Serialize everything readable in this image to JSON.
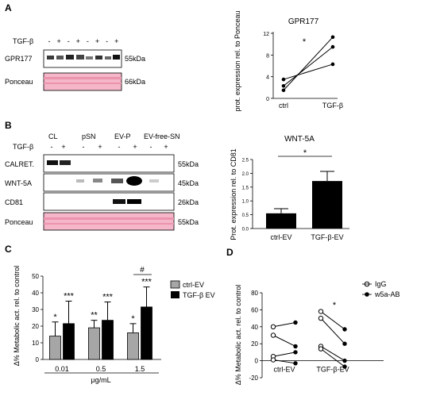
{
  "panels": {
    "A": "A",
    "B": "B",
    "C": "C",
    "D": "D"
  },
  "blotA": {
    "treatment_label": "TGF-β",
    "lane_signs": [
      "-",
      "+",
      "-",
      "+",
      "-",
      "+",
      "-",
      "+"
    ],
    "rows": [
      {
        "name": "GPR177",
        "size": "55kDa"
      },
      {
        "name": "Ponceau",
        "size": "66kDa"
      }
    ]
  },
  "blotB": {
    "groups": [
      "CL",
      "pSN",
      "EV-P",
      "EV-free-SN"
    ],
    "treatment_label": "TGF-β",
    "lane_signs": [
      "-",
      "+",
      "-",
      "+",
      "-",
      "+",
      "-",
      "+"
    ],
    "rows": [
      {
        "name": "CALRET.",
        "size": "55kDa"
      },
      {
        "name": "WNT-5A",
        "size": "45kDa"
      },
      {
        "name": "CD81",
        "size": "26kDa"
      },
      {
        "name": "Ponceau",
        "size": "55kDa"
      }
    ]
  },
  "colors": {
    "pink": "#f4b6c8",
    "pinkDark": "#ec93ae",
    "gray": "#a6a6a6",
    "black": "#000000"
  },
  "chart_data": [
    {
      "id": "A",
      "type": "line",
      "title": "GPR177",
      "ylabel": "prot. expression rel. to Ponceau",
      "categories": [
        "ctrl",
        "TGF-β"
      ],
      "ylim": [
        0,
        12
      ],
      "yticks": [
        "0",
        "4",
        "8",
        "12"
      ],
      "series": [
        {
          "values": [
            1.5,
            11.3
          ]
        },
        {
          "values": [
            2.3,
            9.5
          ]
        },
        {
          "values": [
            3.5,
            6.3
          ]
        }
      ],
      "annotations": [
        "*"
      ]
    },
    {
      "id": "B",
      "type": "bar",
      "title": "WNT-5A",
      "ylabel": "Prot. expression rel. to CD81",
      "categories": [
        "ctrl-EV",
        "TGF-β-EV"
      ],
      "values": [
        0.55,
        1.72
      ],
      "errors": [
        0.17,
        0.35
      ],
      "ylim": [
        0,
        2.5
      ],
      "yticks": [
        "0.0",
        "0.5",
        "1.0",
        "1.5",
        "2.0",
        "2.5"
      ],
      "annotations": [
        "*"
      ]
    },
    {
      "id": "C",
      "type": "bar",
      "ylabel": "Δ% Metabolic act. rel. to control",
      "xlabel": "μg/mL",
      "categories": [
        "0.01",
        "0.5",
        "1.5"
      ],
      "ylim": [
        0,
        50
      ],
      "yticks": [
        "0",
        "10",
        "20",
        "30",
        "40",
        "50"
      ],
      "legend_position": "top-right",
      "series": [
        {
          "name": "ctrl-EV",
          "values": [
            14,
            19,
            16
          ],
          "errors": [
            8.5,
            4.5,
            5.5
          ],
          "stars": [
            "*",
            "**",
            "*"
          ]
        },
        {
          "name": "TGF-β EV",
          "values": [
            21.5,
            23.5,
            31.5
          ],
          "errors": [
            13.5,
            11,
            12
          ],
          "stars": [
            "***",
            "***",
            "***"
          ]
        }
      ],
      "annotations": [
        "#"
      ]
    },
    {
      "id": "D",
      "type": "line",
      "ylabel": "Δ% Metabolic act. rel. to control",
      "categories": [
        "ctrl-EV",
        "TGF-β-EV"
      ],
      "ylim": [
        -20,
        80
      ],
      "yticks": [
        "-20",
        "0",
        "20",
        "40",
        "60",
        "80"
      ],
      "legend_position": "top-left",
      "series": [
        {
          "name": "IgG",
          "pairs": [
            [
              40,
              50
            ],
            [
              30,
              58
            ],
            [
              5,
              17
            ],
            [
              1,
              14
            ]
          ]
        },
        {
          "name": "w5a-AB",
          "pairs": [
            [
              45,
              37
            ],
            [
              17,
              20
            ],
            [
              10,
              0
            ],
            [
              -3,
              -7
            ]
          ]
        }
      ],
      "annotations": [
        "*"
      ]
    }
  ]
}
